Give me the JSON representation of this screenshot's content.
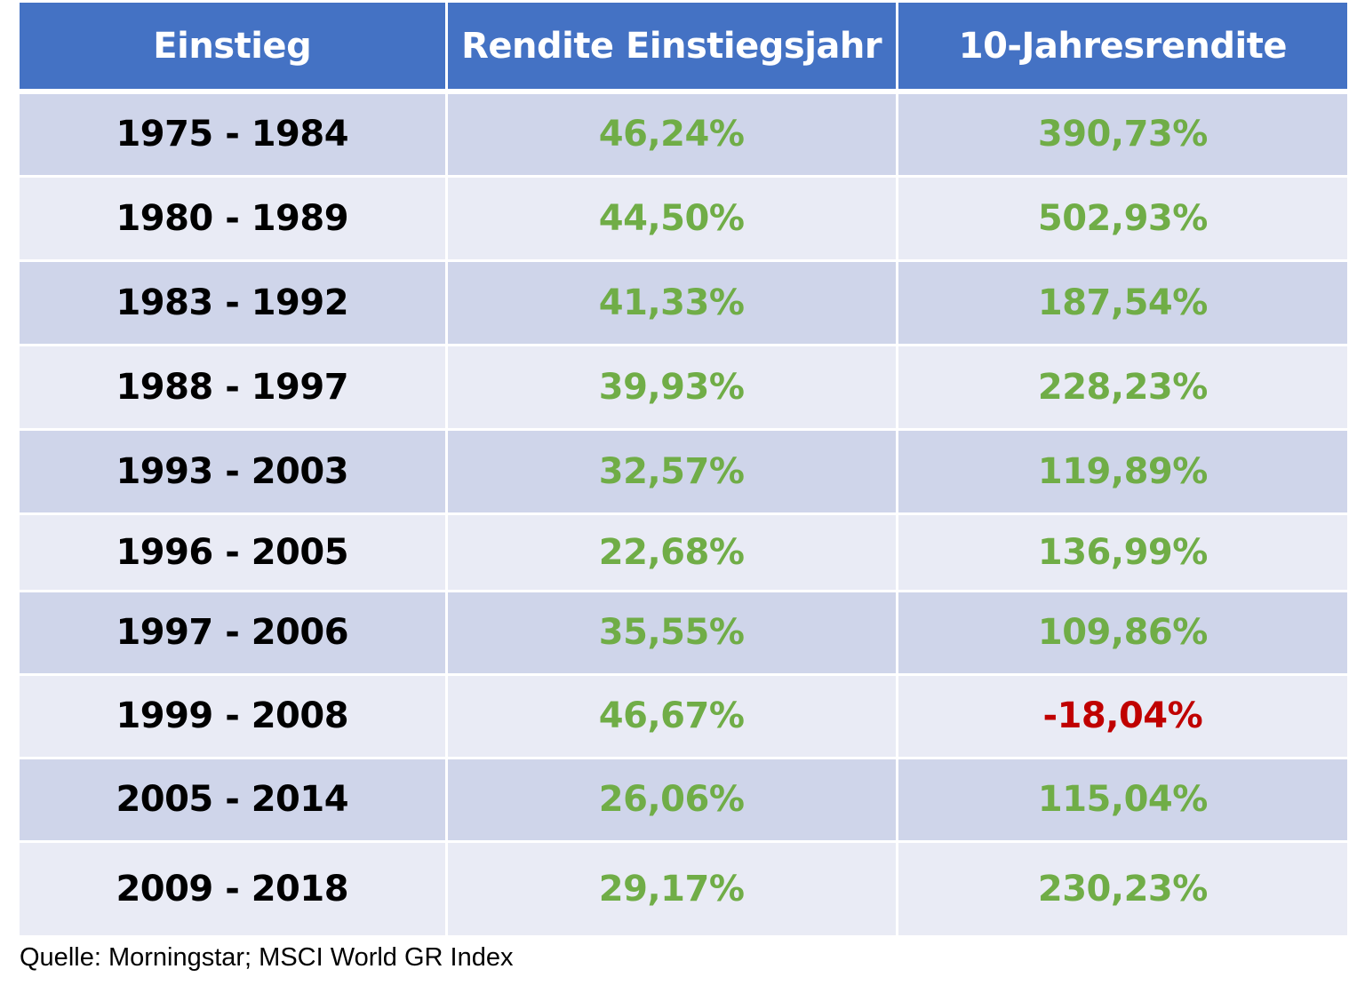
{
  "chart_data": {
    "type": "table",
    "columns": [
      "Einstieg",
      "Rendite Einstiegsjahr",
      "10-Jahresrendite"
    ],
    "rows": [
      {
        "period": "1975 - 1984",
        "first_year": "46,24%",
        "ten_year": "390,73%",
        "ten_year_negative": false
      },
      {
        "period": "1980 - 1989",
        "first_year": "44,50%",
        "ten_year": "502,93%",
        "ten_year_negative": false
      },
      {
        "period": "1983 - 1992",
        "first_year": "41,33%",
        "ten_year": "187,54%",
        "ten_year_negative": false
      },
      {
        "period": "1988 - 1997",
        "first_year": "39,93%",
        "ten_year": "228,23%",
        "ten_year_negative": false
      },
      {
        "period": "1993 - 2003",
        "first_year": "32,57%",
        "ten_year": "119,89%",
        "ten_year_negative": false
      },
      {
        "period": "1996 - 2005",
        "first_year": "22,68%",
        "ten_year": "136,99%",
        "ten_year_negative": false
      },
      {
        "period": "1997 - 2006",
        "first_year": "35,55%",
        "ten_year": "109,86%",
        "ten_year_negative": false
      },
      {
        "period": "1999 - 2008",
        "first_year": "46,67%",
        "ten_year": "-18,04%",
        "ten_year_negative": true
      },
      {
        "period": "2005 - 2014",
        "first_year": "26,06%",
        "ten_year": "115,04%",
        "ten_year_negative": false
      },
      {
        "period": "2009 - 2018",
        "first_year": "29,17%",
        "ten_year": "230,23%",
        "ten_year_negative": false
      }
    ],
    "colors": {
      "header_background": "#4472c4",
      "row_odd": "#cfd5ea",
      "row_even": "#e9ebf5",
      "positive": "#70ad47",
      "negative": "#c00000"
    }
  },
  "source": "Quelle: Morningstar; MSCI World GR Index"
}
